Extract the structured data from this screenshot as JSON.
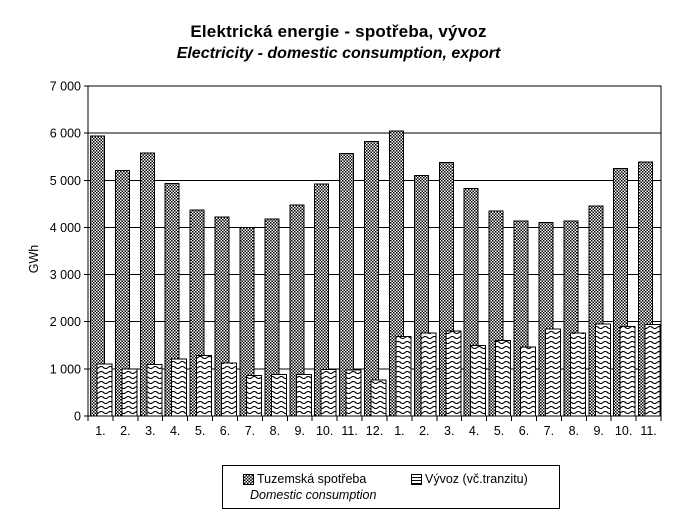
{
  "window": {
    "background": "#ffffff",
    "foreground": "#000000"
  },
  "chart_data": {
    "type": "bar",
    "title": "Elektrická energie - spotřeba, vývoz",
    "subtitle": "Electricity - domestic consumption, export",
    "xlabel": "",
    "ylabel": "GWh",
    "ylim": [
      0,
      7000
    ],
    "ytick_interval": 1000,
    "ytick_labels": [
      "0",
      "1 000",
      "2 000",
      "3 000",
      "4 000",
      "5 000",
      "6 000",
      "7 000"
    ],
    "categories": [
      "1.",
      "2.",
      "3.",
      "4.",
      "5.",
      "6.",
      "7.",
      "8.",
      "9.",
      "10.",
      "11.",
      "12.",
      "1.",
      "2.",
      "3.",
      "4.",
      "5.",
      "6.",
      "7.",
      "8.",
      "9.",
      "10.",
      "11."
    ],
    "categories_note": "months: 12 months of first year followed by 11 months of second year",
    "series": [
      {
        "name": "Tuzemská spotřeba",
        "sublabel": "Domestic consumption",
        "pattern": "checker",
        "values": [
          5940,
          5210,
          5580,
          4930,
          4370,
          4220,
          4000,
          4180,
          4480,
          4920,
          5570,
          5820,
          6050,
          5100,
          5380,
          4830,
          4350,
          4140,
          4100,
          4140,
          4450,
          5250,
          5390
        ]
      },
      {
        "name": "Vývoz (vč.tranzitu)",
        "pattern": "waves",
        "values": [
          1100,
          1000,
          1090,
          1210,
          1280,
          1120,
          860,
          880,
          880,
          990,
          980,
          760,
          1690,
          1760,
          1800,
          1500,
          1600,
          1460,
          1850,
          1760,
          1950,
          1900,
          1940
        ]
      }
    ],
    "grid": "horizontal",
    "legend_position": "bottom",
    "colors": {
      "foreground": "#000000",
      "background": "#ffffff"
    }
  }
}
